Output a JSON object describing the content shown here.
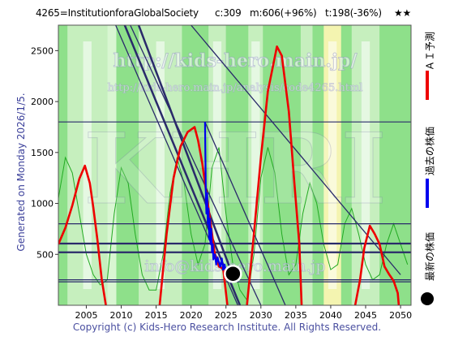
{
  "header": {
    "code_name": "4265=InstitutionforaGlobalSociety",
    "c": "c:309",
    "m": "m:606(+96%)",
    "t": "t:198(-36%)",
    "stars": "★★"
  },
  "footer": "Copyright (c) Kids-Hero Research Institute. All Rights Reserved.",
  "generated": "Generated on Monday 2026/1/5.",
  "watermarks": [
    "http://kids-hero.main.jp/",
    "http://kids-hero.main.jp/analysis/code4265.html",
    "info@kids-hero.main.jp",
    "KHRI"
  ],
  "colors": {
    "ai_prediction": "#ee0000",
    "past_price": "#0000ee",
    "latest_price": "#000000",
    "background_green": "#8ee08a",
    "stripe_light": "#d4f4cc",
    "stripe_yellow": "#f4f4b0",
    "cycle_green": "#22aa22",
    "trend_lines": "#2a2a6a"
  },
  "chart_data": {
    "type": "line",
    "title": "",
    "xlabel": "",
    "ylabel": "",
    "xlim": [
      2001,
      2051.5
    ],
    "ylim": [
      0,
      2750
    ],
    "x_ticks": [
      2005,
      2010,
      2015,
      2020,
      2025,
      2030,
      2035,
      2040,
      2045,
      2050
    ],
    "y_ticks": [
      500,
      1000,
      1500,
      2000,
      2500
    ],
    "grid": false,
    "legend": {
      "placement": "right",
      "entries": [
        {
          "label": "ＡＩ予測",
          "color": "#ee0000",
          "style": "line"
        },
        {
          "label": "過去の株価",
          "color": "#0000ee",
          "style": "line"
        },
        {
          "label": "最新の株価",
          "color": "#000000",
          "style": "dot"
        }
      ]
    },
    "series": [
      {
        "name": "ＡＩ予測",
        "color": "#ee0000",
        "x": [
          2001,
          2002,
          2003,
          2004,
          2004.8,
          2005.5,
          2006,
          2006.6,
          2007.2,
          2007.8,
          2008.5,
          2014.5,
          2015.5,
          2016.5,
          2017.5,
          2018.5,
          2019.5,
          2020.5,
          2021,
          2021.6,
          2022.2,
          2022.8,
          2023.4,
          2024,
          2024.6,
          2025.2,
          2026,
          2027,
          2028,
          2029,
          2030,
          2031,
          2032.3,
          2033,
          2034,
          2034.8,
          2035.5,
          2036,
          2042.5,
          2043.5,
          2044.2,
          2044.8,
          2045.6,
          2046.3,
          2047,
          2047.7,
          2048.4,
          2049,
          2049.6,
          2050
        ],
        "y": [
          600,
          760,
          980,
          1240,
          1370,
          1200,
          960,
          640,
          260,
          0,
          -300,
          -300,
          0,
          700,
          1250,
          1560,
          1700,
          1750,
          1620,
          1400,
          1100,
          800,
          500,
          380,
          360,
          0,
          -300,
          -300,
          0,
          700,
          1450,
          2100,
          2540,
          2450,
          1900,
          1200,
          600,
          -300,
          -300,
          0,
          250,
          560,
          780,
          700,
          600,
          380,
          300,
          240,
          120,
          -200
        ]
      },
      {
        "name": "過去の株価",
        "color": "#0000ee",
        "x": [
          2022.0,
          2022.05,
          2022.1,
          2022.15,
          2022.2,
          2022.3,
          2022.4,
          2022.5,
          2022.6,
          2022.7,
          2022.8,
          2022.9,
          2023.0,
          2023.1,
          2023.2,
          2023.4,
          2023.6,
          2023.8,
          2024.0,
          2024.2,
          2024.4,
          2024.6,
          2024.8,
          2025.0,
          2025.2,
          2025.4,
          2025.6,
          2025.8,
          2026.0
        ],
        "y": [
          1800,
          1500,
          1150,
          1000,
          900,
          1100,
          800,
          950,
          650,
          850,
          600,
          750,
          520,
          600,
          450,
          500,
          400,
          470,
          420,
          380,
          460,
          350,
          400,
          330,
          360,
          320,
          340,
          310,
          309
        ]
      }
    ],
    "latest_point": {
      "x": 2026.0,
      "y": 309
    },
    "horizontal_levels": [
      1800,
      800,
      606,
      520,
      250,
      230
    ],
    "trend_lines": [
      {
        "from": [
          2009.2,
          2750
        ],
        "to": [
          2026.7,
          0
        ]
      },
      {
        "from": [
          2010.5,
          2750
        ],
        "to": [
          2027.0,
          0
        ]
      },
      {
        "from": [
          2011.3,
          2750
        ],
        "to": [
          2030.0,
          0
        ]
      },
      {
        "from": [
          2020.0,
          2750
        ],
        "to": [
          2050.0,
          300
        ]
      },
      {
        "from": [
          2022.0,
          1800
        ],
        "to": [
          2033.5,
          0
        ]
      },
      {
        "from": [
          2012.5,
          2750
        ],
        "to": [
          2026.2,
          250
        ]
      }
    ],
    "background_bands": [
      {
        "from": 2001,
        "to": 2002.3,
        "color": "#8ee08a"
      },
      {
        "from": 2002.3,
        "to": 2008.0,
        "color": "#c6efbe"
      },
      {
        "from": 2008.0,
        "to": 2009.3,
        "color": "#d9f6d2"
      },
      {
        "from": 2009.3,
        "to": 2012.5,
        "color": "#8ee08a"
      },
      {
        "from": 2012.5,
        "to": 2018.7,
        "color": "#c6efbe"
      },
      {
        "from": 2018.7,
        "to": 2022.5,
        "color": "#8ee08a"
      },
      {
        "from": 2022.5,
        "to": 2025.0,
        "color": "#c6efbe"
      },
      {
        "from": 2025.0,
        "to": 2028.2,
        "color": "#8ee08a"
      },
      {
        "from": 2028.2,
        "to": 2030.3,
        "color": "#c6efbe"
      },
      {
        "from": 2030.3,
        "to": 2035.7,
        "color": "#8ee08a"
      },
      {
        "from": 2035.7,
        "to": 2037.4,
        "color": "#c6efbe"
      },
      {
        "from": 2037.4,
        "to": 2039.0,
        "color": "#8ee08a"
      },
      {
        "from": 2039.0,
        "to": 2041.5,
        "color": "#f4f4b0"
      },
      {
        "from": 2041.5,
        "to": 2043.0,
        "color": "#8ee08a"
      },
      {
        "from": 2043.0,
        "to": 2047.0,
        "color": "#c6efbe"
      },
      {
        "from": 2047.0,
        "to": 2051.5,
        "color": "#8ee08a"
      }
    ],
    "cycle_curve": {
      "color": "#22aa22",
      "x": [
        2001,
        2002,
        2003,
        2004,
        2005,
        2006,
        2007,
        2008,
        2009,
        2010,
        2011,
        2012,
        2013,
        2014,
        2015,
        2016,
        2017,
        2018,
        2019,
        2020,
        2021,
        2022,
        2023,
        2024,
        2025,
        2026,
        2027,
        2028,
        2029,
        2030,
        2031,
        2032,
        2033,
        2034,
        2035,
        2036,
        2037,
        2038,
        2039,
        2040,
        2041,
        2042,
        2043,
        2044,
        2045,
        2046,
        2047,
        2048,
        2049,
        2050,
        2051
      ],
      "y": [
        1050,
        1450,
        1300,
        900,
        500,
        300,
        200,
        250,
        900,
        1350,
        1200,
        700,
        300,
        150,
        150,
        500,
        1100,
        1450,
        1200,
        700,
        400,
        600,
        1350,
        1550,
        900,
        400,
        150,
        50,
        500,
        1250,
        1550,
        1300,
        700,
        300,
        400,
        900,
        1200,
        1000,
        600,
        350,
        400,
        800,
        950,
        700,
        400,
        250,
        300,
        600,
        800,
        600,
        400
      ]
    }
  }
}
